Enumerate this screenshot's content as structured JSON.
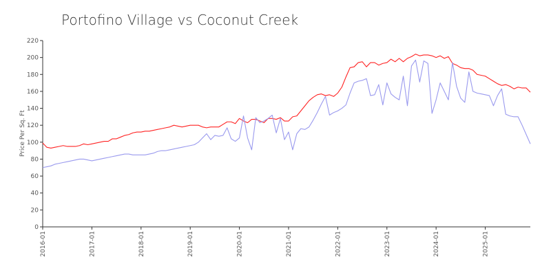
{
  "chart_data": {
    "type": "line",
    "title": "Portofino Village vs Coconut Creek",
    "xlabel": "",
    "ylabel": "Price Per Sq. Ft",
    "ylim": [
      0,
      220
    ],
    "yticks": [
      0,
      20,
      40,
      60,
      80,
      100,
      120,
      140,
      160,
      180,
      200,
      220
    ],
    "x_start": "2016-01",
    "x_end": "2025-12",
    "xticks": [
      "2016-01",
      "2017-01",
      "2018-01",
      "2019-01",
      "2020-01",
      "2021-01",
      "2022-01",
      "2023-01",
      "2024-01",
      "2025-01"
    ],
    "grid": false,
    "legend": "none",
    "series": [
      {
        "color": "#ff2222",
        "x": [
          "2016-01",
          "2016-02",
          "2016-03",
          "2016-04",
          "2016-05",
          "2016-06",
          "2016-07",
          "2016-08",
          "2016-09",
          "2016-10",
          "2016-11",
          "2016-12",
          "2017-01",
          "2017-02",
          "2017-03",
          "2017-04",
          "2017-05",
          "2017-06",
          "2017-07",
          "2017-08",
          "2017-09",
          "2017-10",
          "2017-11",
          "2017-12",
          "2018-01",
          "2018-02",
          "2018-03",
          "2018-04",
          "2018-05",
          "2018-06",
          "2018-07",
          "2018-08",
          "2018-09",
          "2018-10",
          "2018-11",
          "2018-12",
          "2019-01",
          "2019-02",
          "2019-03",
          "2019-04",
          "2019-05",
          "2019-06",
          "2019-07",
          "2019-08",
          "2019-09",
          "2019-10",
          "2019-11",
          "2019-12",
          "2020-01",
          "2020-02",
          "2020-03",
          "2020-04",
          "2020-05",
          "2020-06",
          "2020-07",
          "2020-08",
          "2020-09",
          "2020-10",
          "2020-11",
          "2020-12",
          "2021-01",
          "2021-02",
          "2021-03",
          "2021-04",
          "2021-05",
          "2021-06",
          "2021-07",
          "2021-08",
          "2021-09",
          "2021-10",
          "2021-11",
          "2021-12",
          "2022-01",
          "2022-02",
          "2022-03",
          "2022-04",
          "2022-05",
          "2022-06",
          "2022-07",
          "2022-08",
          "2022-09",
          "2022-10",
          "2022-11",
          "2022-12",
          "2023-01",
          "2023-02",
          "2023-03",
          "2023-04",
          "2023-05",
          "2023-06",
          "2023-07",
          "2023-08",
          "2023-09",
          "2023-10",
          "2023-11",
          "2023-12",
          "2024-01",
          "2024-02",
          "2024-03",
          "2024-04",
          "2024-05",
          "2024-06",
          "2024-07",
          "2024-08",
          "2024-09",
          "2024-10",
          "2024-11",
          "2024-12",
          "2025-01",
          "2025-02",
          "2025-03",
          "2025-04",
          "2025-05",
          "2025-06",
          "2025-07",
          "2025-08",
          "2025-09",
          "2025-10",
          "2025-11",
          "2025-12"
        ],
        "values": [
          99,
          94,
          93,
          94,
          95,
          96,
          95,
          95,
          95,
          96,
          98,
          97,
          98,
          99,
          100,
          101,
          101,
          104,
          104,
          106,
          108,
          109,
          111,
          112,
          112,
          113,
          113,
          114,
          115,
          116,
          117,
          118,
          120,
          119,
          118,
          119,
          120,
          120,
          120,
          118,
          117,
          118,
          118,
          118,
          121,
          124,
          124,
          122,
          128,
          125,
          123,
          127,
          127,
          125,
          123,
          128,
          128,
          127,
          129,
          125,
          125,
          130,
          131,
          137,
          143,
          149,
          153,
          156,
          157,
          155,
          156,
          154,
          158,
          165,
          177,
          188,
          189,
          194,
          195,
          189,
          194,
          194,
          191,
          193,
          194,
          198,
          195,
          199,
          195,
          199,
          201,
          204,
          202,
          203,
          203,
          202,
          200,
          202,
          199,
          201,
          193,
          191,
          188,
          187,
          187,
          185,
          180,
          179,
          178,
          175,
          172,
          169,
          167,
          168,
          166,
          163,
          165,
          164,
          164,
          159
        ]
      },
      {
        "color": "#9999ee",
        "x": [
          "2016-01",
          "2016-02",
          "2016-03",
          "2016-04",
          "2016-05",
          "2016-06",
          "2016-07",
          "2016-08",
          "2016-09",
          "2016-10",
          "2016-11",
          "2016-12",
          "2017-01",
          "2017-02",
          "2017-03",
          "2017-04",
          "2017-05",
          "2017-06",
          "2017-07",
          "2017-08",
          "2017-09",
          "2017-10",
          "2017-11",
          "2017-12",
          "2018-01",
          "2018-02",
          "2018-03",
          "2018-04",
          "2018-05",
          "2018-06",
          "2018-07",
          "2018-08",
          "2018-09",
          "2018-10",
          "2018-11",
          "2018-12",
          "2019-01",
          "2019-02",
          "2019-03",
          "2019-04",
          "2019-05",
          "2019-06",
          "2019-07",
          "2019-08",
          "2019-09",
          "2019-10",
          "2019-11",
          "2019-12",
          "2020-01",
          "2020-02",
          "2020-03",
          "2020-04",
          "2020-05",
          "2020-06",
          "2020-07",
          "2020-08",
          "2020-09",
          "2020-10",
          "2020-11",
          "2020-12",
          "2021-01",
          "2021-02",
          "2021-03",
          "2021-04",
          "2021-05",
          "2021-06",
          "2021-07",
          "2021-08",
          "2021-09",
          "2021-10",
          "2021-11",
          "2021-12",
          "2022-01",
          "2022-02",
          "2022-03",
          "2022-04",
          "2022-05",
          "2022-06",
          "2022-07",
          "2022-08",
          "2022-09",
          "2022-10",
          "2022-11",
          "2022-12",
          "2023-01",
          "2023-02",
          "2023-03",
          "2023-04",
          "2023-05",
          "2023-06",
          "2023-07",
          "2023-08",
          "2023-09",
          "2023-10",
          "2023-11",
          "2023-12",
          "2024-01",
          "2024-02",
          "2024-03",
          "2024-04",
          "2024-05",
          "2024-06",
          "2024-07",
          "2024-08",
          "2024-09",
          "2024-10",
          "2024-11",
          "2024-12",
          "2025-01",
          "2025-02",
          "2025-03",
          "2025-04",
          "2025-05",
          "2025-06",
          "2025-07",
          "2025-08",
          "2025-09",
          "2025-10",
          "2025-11",
          "2025-12"
        ],
        "values": [
          70,
          71,
          72,
          74,
          75,
          76,
          77,
          78,
          79,
          80,
          80,
          79,
          78,
          79,
          80,
          81,
          82,
          83,
          84,
          85,
          86,
          86,
          85,
          85,
          85,
          85,
          86,
          87,
          89,
          90,
          90,
          91,
          92,
          93,
          94,
          95,
          96,
          97,
          100,
          105,
          110,
          103,
          108,
          107,
          108,
          117,
          104,
          101,
          105,
          131,
          105,
          91,
          129,
          123,
          125,
          128,
          132,
          111,
          128,
          103,
          112,
          91,
          110,
          116,
          115,
          118,
          126,
          135,
          145,
          154,
          132,
          135,
          137,
          140,
          144,
          158,
          170,
          172,
          173,
          175,
          155,
          156,
          168,
          144,
          170,
          157,
          153,
          150,
          178,
          143,
          190,
          197,
          171,
          196,
          193,
          134,
          150,
          170,
          160,
          150,
          194,
          166,
          152,
          147,
          183,
          160,
          158,
          157,
          156,
          155,
          143,
          155,
          163,
          133,
          131,
          130,
          130,
          120,
          109,
          98
        ]
      }
    ]
  }
}
